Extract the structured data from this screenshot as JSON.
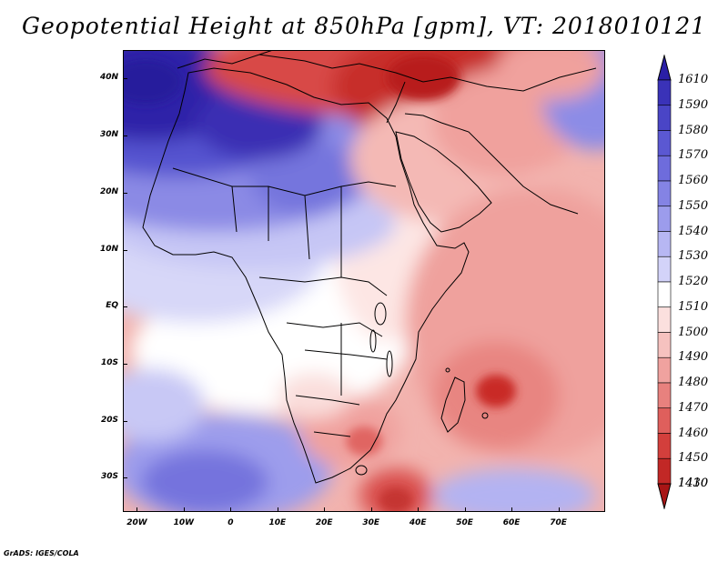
{
  "title": "Geopotential Height at 850hPa [gpm], VT: 2018010121",
  "footer": "GrADS: IGES/COLA",
  "map": {
    "domain": "Africa",
    "lon_range": [
      -23,
      80
    ],
    "lat_range": [
      -36,
      45
    ],
    "lat_labels": [
      {
        "text": "40N",
        "lat": 40
      },
      {
        "text": "30N",
        "lat": 30
      },
      {
        "text": "20N",
        "lat": 20
      },
      {
        "text": "10N",
        "lat": 10
      },
      {
        "text": "EQ",
        "lat": 0
      },
      {
        "text": "10S",
        "lat": -10
      },
      {
        "text": "20S",
        "lat": -20
      },
      {
        "text": "30S",
        "lat": -30
      }
    ],
    "lon_labels": [
      {
        "text": "20W",
        "lon": -20
      },
      {
        "text": "10W",
        "lon": -10
      },
      {
        "text": "0",
        "lon": 0
      },
      {
        "text": "10E",
        "lon": 10
      },
      {
        "text": "20E",
        "lon": 20
      },
      {
        "text": "30E",
        "lon": 30
      },
      {
        "text": "40E",
        "lon": 40
      },
      {
        "text": "50E",
        "lon": 50
      },
      {
        "text": "60E",
        "lon": 60
      },
      {
        "text": "70E",
        "lon": 70
      }
    ]
  },
  "colorbar": {
    "labels": [
      "1610",
      "1590",
      "1580",
      "1570",
      "1560",
      "1550",
      "1540",
      "1530",
      "1520",
      "1510",
      "1500",
      "1490",
      "1480",
      "1470",
      "1460",
      "1450",
      "1430",
      "1410"
    ],
    "colors": [
      "#2a1fa6",
      "#3a32b8",
      "#4a45c6",
      "#5b58d2",
      "#6e6cdc",
      "#8483e4",
      "#9c9cec",
      "#b7b7f3",
      "#d3d3f9",
      "#ffffff",
      "#fbe0de",
      "#f6c2bf",
      "#f0a29f",
      "#e8817e",
      "#df5f5c",
      "#d33f3c",
      "#c22826",
      "#a81515"
    ]
  }
}
